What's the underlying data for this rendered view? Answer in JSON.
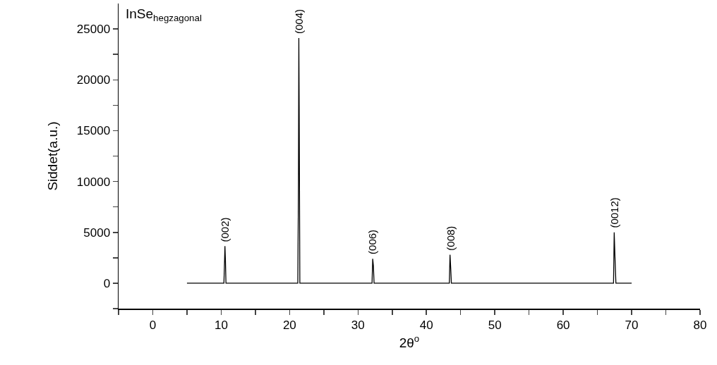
{
  "chart_data": {
    "type": "line",
    "title": "InSe$_{hegzagonal}$",
    "xlabel": "2θ$^{o}$",
    "ylabel": "Siddet(a.u.)",
    "x": [
      5,
      10.4,
      10.5,
      10.55,
      10.62,
      10.7,
      21.2,
      21.3,
      21.35,
      21.4,
      21.5,
      32.05,
      32.15,
      32.25,
      32.35,
      43.35,
      43.45,
      43.55,
      43.65,
      67.35,
      67.45,
      67.55,
      67.7,
      70
    ],
    "series": [
      {
        "color": "#000000",
        "values": [
          0,
          0,
          2300,
          3650,
          2300,
          0,
          0,
          10000,
          24100,
          17500,
          0,
          0,
          2400,
          1700,
          0,
          0,
          2800,
          1500,
          0,
          0,
          5000,
          2800,
          0,
          0
        ]
      }
    ],
    "annotations": [
      {
        "text": "(002)",
        "x": 10.55,
        "y": 3650
      },
      {
        "text": "(004)",
        "x": 21.35,
        "y": 24100
      },
      {
        "text": "(006)",
        "x": 32.15,
        "y": 2400
      },
      {
        "text": "(008)",
        "x": 43.45,
        "y": 2800
      },
      {
        "text": "(0012)",
        "x": 67.45,
        "y": 5000
      }
    ],
    "xlim": [
      -5,
      80
    ],
    "ylim": [
      -2500,
      27500
    ],
    "xticks": [
      {
        "value": -5,
        "label": null
      },
      0,
      {
        "value": 5,
        "label": null
      },
      10,
      {
        "value": 15,
        "label": null
      },
      20,
      {
        "value": 25,
        "label": null
      },
      30,
      {
        "value": 35,
        "label": null
      },
      40,
      {
        "value": 45,
        "label": null
      },
      50,
      {
        "value": 55,
        "label": null
      },
      60,
      {
        "value": 65,
        "label": null
      },
      70,
      {
        "value": 75,
        "label": null
      },
      80
    ],
    "yticks": [
      {
        "value": -2500,
        "label": null
      },
      0,
      {
        "value": 2500,
        "label": null
      },
      5000,
      {
        "value": 7500,
        "label": null
      },
      10000,
      {
        "value": 12500,
        "label": null
      },
      15000,
      {
        "value": 17500,
        "label": null
      },
      20000,
      {
        "value": 22500,
        "label": null
      },
      25000
    ],
    "grid": false,
    "marker": "none",
    "line_style": "solid"
  }
}
